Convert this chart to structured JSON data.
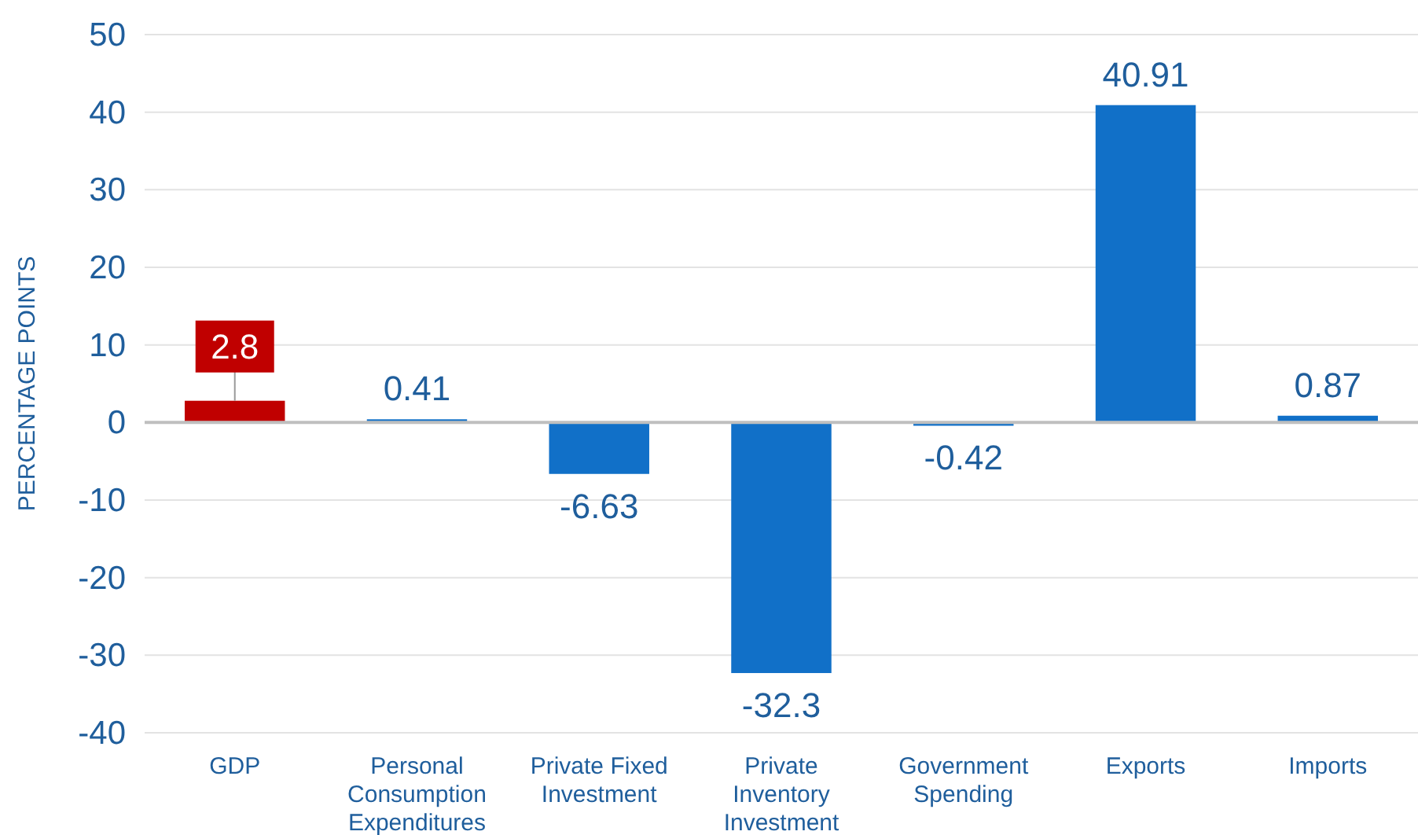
{
  "chart_data": {
    "type": "bar",
    "ylabel": "PERCENTAGE POINTS",
    "categories": [
      "GDP",
      "Personal Consumption Expenditures",
      "Private Fixed Investment",
      "Private Inventory Investment",
      "Government Spending",
      "Exports",
      "Imports"
    ],
    "values": [
      2.8,
      0.41,
      -6.63,
      -32.3,
      -0.42,
      40.91,
      0.87
    ],
    "colors": [
      "#c00000",
      "#1170c8",
      "#1170c8",
      "#1170c8",
      "#1170c8",
      "#1170c8",
      "#1170c8"
    ],
    "ylim": [
      -40,
      50
    ],
    "yticks": [
      -40,
      -30,
      -20,
      -10,
      0,
      10,
      20,
      30,
      40,
      50
    ],
    "grid": "y",
    "data_labels": true
  }
}
